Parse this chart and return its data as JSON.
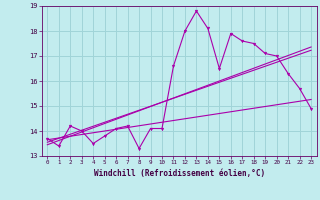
{
  "title": "",
  "xlabel": "Windchill (Refroidissement éolien,°C)",
  "xlim": [
    -0.5,
    23.5
  ],
  "ylim": [
    13,
    19
  ],
  "yticks": [
    13,
    14,
    15,
    16,
    17,
    18,
    19
  ],
  "xticks": [
    0,
    1,
    2,
    3,
    4,
    5,
    6,
    7,
    8,
    9,
    10,
    11,
    12,
    13,
    14,
    15,
    16,
    17,
    18,
    19,
    20,
    21,
    22,
    23
  ],
  "bg_color": "#c2ecee",
  "grid_color": "#a0d4d8",
  "line_color": "#aa00aa",
  "data_y": [
    13.7,
    13.4,
    14.2,
    14.0,
    13.5,
    13.8,
    14.1,
    14.2,
    13.3,
    14.1,
    14.1,
    16.6,
    18.0,
    18.8,
    18.1,
    16.5,
    17.9,
    17.6,
    17.5,
    17.1,
    17.0,
    16.3,
    15.7,
    14.9
  ],
  "reg1_y": [
    13.55,
    13.71,
    13.87,
    14.03,
    14.19,
    14.35,
    14.51,
    14.67,
    14.83,
    14.99,
    15.15,
    15.31,
    15.47,
    15.63,
    15.79,
    15.95,
    16.11,
    16.27,
    16.43,
    16.59,
    16.75,
    16.91,
    17.07,
    17.23
  ],
  "reg2_y": [
    13.45,
    13.62,
    13.79,
    13.96,
    14.13,
    14.3,
    14.47,
    14.64,
    14.81,
    14.98,
    15.15,
    15.32,
    15.49,
    15.66,
    15.83,
    16.0,
    16.17,
    16.34,
    16.51,
    16.68,
    16.85,
    17.02,
    17.19,
    17.36
  ],
  "reg3_y": [
    13.65,
    13.72,
    13.79,
    13.86,
    13.93,
    14.0,
    14.07,
    14.14,
    14.21,
    14.28,
    14.35,
    14.42,
    14.49,
    14.56,
    14.63,
    14.7,
    14.77,
    14.84,
    14.91,
    14.98,
    15.05,
    15.12,
    15.19,
    15.26
  ]
}
